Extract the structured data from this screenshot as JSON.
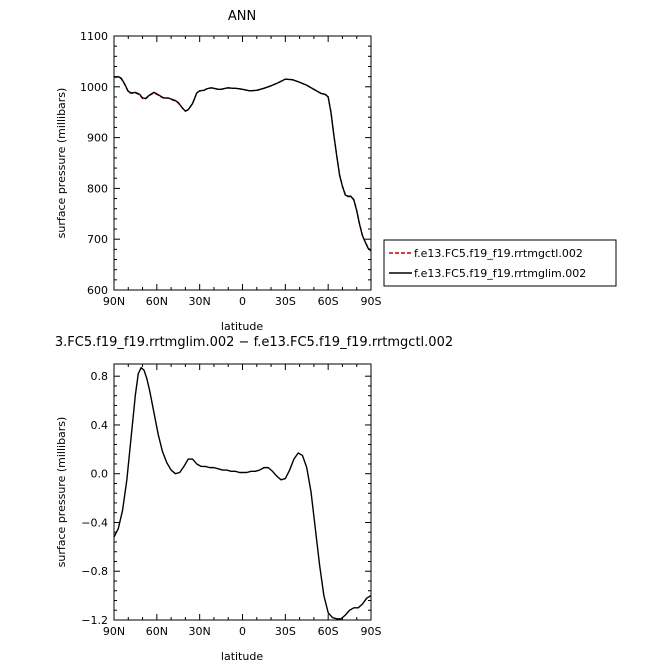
{
  "chart_data": [
    {
      "type": "line",
      "title": "ANN",
      "xlabel": "latitude",
      "ylabel": "surface pressure (millibars)",
      "xlim": [
        90,
        -90
      ],
      "ylim": [
        600,
        1100
      ],
      "x_ticks": [
        {
          "value": 90,
          "label": "90N"
        },
        {
          "value": 60,
          "label": "60N"
        },
        {
          "value": 30,
          "label": "30N"
        },
        {
          "value": 0,
          "label": "0"
        },
        {
          "value": -30,
          "label": "30S"
        },
        {
          "value": -60,
          "label": "60S"
        },
        {
          "value": -90,
          "label": "90S"
        }
      ],
      "y_ticks": [
        {
          "value": 600,
          "label": "600"
        },
        {
          "value": 700,
          "label": "700"
        },
        {
          "value": 800,
          "label": "800"
        },
        {
          "value": 900,
          "label": "900"
        },
        {
          "value": 1000,
          "label": "1000"
        },
        {
          "value": 1100,
          "label": "1100"
        }
      ],
      "legend": {
        "placement": "right"
      },
      "series": [
        {
          "name": "f.e13.FC5.f19_f19.rrtmgctl.002",
          "color": "#cc0000",
          "dash": "dashed",
          "x": [
            90,
            87,
            85,
            83,
            80,
            78,
            75,
            72,
            70,
            68,
            65,
            62,
            60,
            57,
            55,
            52,
            50,
            47,
            45,
            42,
            40,
            38,
            35,
            32,
            30,
            27,
            25,
            22,
            20,
            17,
            15,
            12,
            10,
            7,
            5,
            2,
            0,
            -5,
            -10,
            -15,
            -20,
            -25,
            -30,
            -35,
            -40,
            -45,
            -50,
            -55,
            -58,
            -60,
            -62,
            -64,
            -66,
            -68,
            -70,
            -72,
            -74,
            -76,
            -78,
            -80,
            -82,
            -84,
            -86,
            -88,
            -90
          ],
          "y": [
            1019,
            1019,
            1016,
            1007,
            990,
            987,
            988,
            984,
            977,
            976,
            983,
            988,
            985,
            980,
            977,
            978,
            975,
            972,
            968,
            958,
            952,
            955,
            967,
            988,
            992,
            993,
            996,
            998,
            997,
            995,
            995,
            997,
            998,
            997,
            997,
            996,
            995,
            992,
            993,
            997,
            1002,
            1008,
            1015,
            1014,
            1009,
            1003,
            995,
            987,
            985,
            980,
            950,
            905,
            865,
            827,
            805,
            788,
            785,
            785,
            778,
            757,
            730,
            708,
            695,
            683,
            678
          ]
        },
        {
          "name": "f.e13.FC5.f19_f19.rrtmglim.002",
          "color": "#000000",
          "dash": "solid",
          "x": [
            90,
            87,
            85,
            83,
            80,
            78,
            75,
            72,
            70,
            68,
            65,
            62,
            60,
            57,
            55,
            52,
            50,
            47,
            45,
            42,
            40,
            38,
            35,
            32,
            30,
            27,
            25,
            22,
            20,
            17,
            15,
            12,
            10,
            7,
            5,
            2,
            0,
            -5,
            -10,
            -15,
            -20,
            -25,
            -30,
            -35,
            -40,
            -45,
            -50,
            -55,
            -58,
            -60,
            -62,
            -64,
            -66,
            -68,
            -70,
            -72,
            -74,
            -76,
            -78,
            -80,
            -82,
            -84,
            -86,
            -88,
            -90
          ],
          "y": [
            1019,
            1020,
            1017,
            1008,
            991,
            988,
            989,
            985,
            978,
            977,
            984,
            989,
            986,
            981,
            978,
            978,
            976,
            973,
            969,
            958,
            952,
            955,
            967,
            988,
            992,
            993,
            996,
            998,
            997,
            995,
            995,
            997,
            998,
            997,
            997,
            996,
            995,
            992,
            993,
            997,
            1002,
            1008,
            1015,
            1014,
            1009,
            1003,
            995,
            987,
            985,
            980,
            949,
            904,
            864,
            826,
            804,
            787,
            784,
            784,
            777,
            756,
            729,
            707,
            694,
            682,
            677
          ]
        }
      ]
    },
    {
      "type": "line",
      "title": "3.FC5.f19_f19.rrtmglim.002 − f.e13.FC5.f19_f19.rrtmgctl.002",
      "xlabel": "latitude",
      "ylabel": "surface pressure (millibars)",
      "xlim": [
        90,
        -90
      ],
      "ylim": [
        -1.2,
        0.9
      ],
      "x_ticks": [
        {
          "value": 90,
          "label": "90N"
        },
        {
          "value": 60,
          "label": "60N"
        },
        {
          "value": 30,
          "label": "30N"
        },
        {
          "value": 0,
          "label": "0"
        },
        {
          "value": -30,
          "label": "30S"
        },
        {
          "value": -60,
          "label": "60S"
        },
        {
          "value": -90,
          "label": "90S"
        }
      ],
      "y_ticks": [
        {
          "value": 0.8,
          "label": "0.8"
        },
        {
          "value": 0.4,
          "label": "0.4"
        },
        {
          "value": 0.0,
          "label": "0.0"
        },
        {
          "value": -0.4,
          "label": "−0.4"
        },
        {
          "value": -0.8,
          "label": "−0.8"
        },
        {
          "value": -1.2,
          "label": "−1.2"
        }
      ],
      "series": [
        {
          "color": "#000000",
          "dash": "solid",
          "x": [
            90,
            87,
            84,
            81,
            78,
            75,
            73,
            71,
            69,
            67,
            65,
            62,
            59,
            56,
            53,
            50,
            47,
            44,
            41,
            38,
            35,
            32,
            29,
            26,
            23,
            20,
            17,
            14,
            11,
            8,
            5,
            2,
            0,
            -3,
            -6,
            -9,
            -12,
            -15,
            -18,
            -21,
            -24,
            -27,
            -30,
            -33,
            -36,
            -39,
            -42,
            -45,
            -48,
            -51,
            -54,
            -57,
            -60,
            -63,
            -66,
            -69,
            -72,
            -75,
            -78,
            -81,
            -84,
            -87,
            -90
          ],
          "y": [
            -0.52,
            -0.45,
            -0.3,
            -0.05,
            0.3,
            0.65,
            0.82,
            0.87,
            0.85,
            0.78,
            0.68,
            0.5,
            0.32,
            0.18,
            0.09,
            0.03,
            0.0,
            0.01,
            0.06,
            0.12,
            0.12,
            0.08,
            0.06,
            0.06,
            0.05,
            0.05,
            0.04,
            0.03,
            0.03,
            0.02,
            0.02,
            0.01,
            0.01,
            0.01,
            0.02,
            0.02,
            0.03,
            0.05,
            0.05,
            0.02,
            -0.02,
            -0.05,
            -0.04,
            0.03,
            0.12,
            0.17,
            0.15,
            0.05,
            -0.15,
            -0.45,
            -0.75,
            -1.0,
            -1.14,
            -1.18,
            -1.19,
            -1.19,
            -1.16,
            -1.12,
            -1.1,
            -1.1,
            -1.07,
            -1.02,
            -1.0
          ]
        }
      ]
    }
  ]
}
